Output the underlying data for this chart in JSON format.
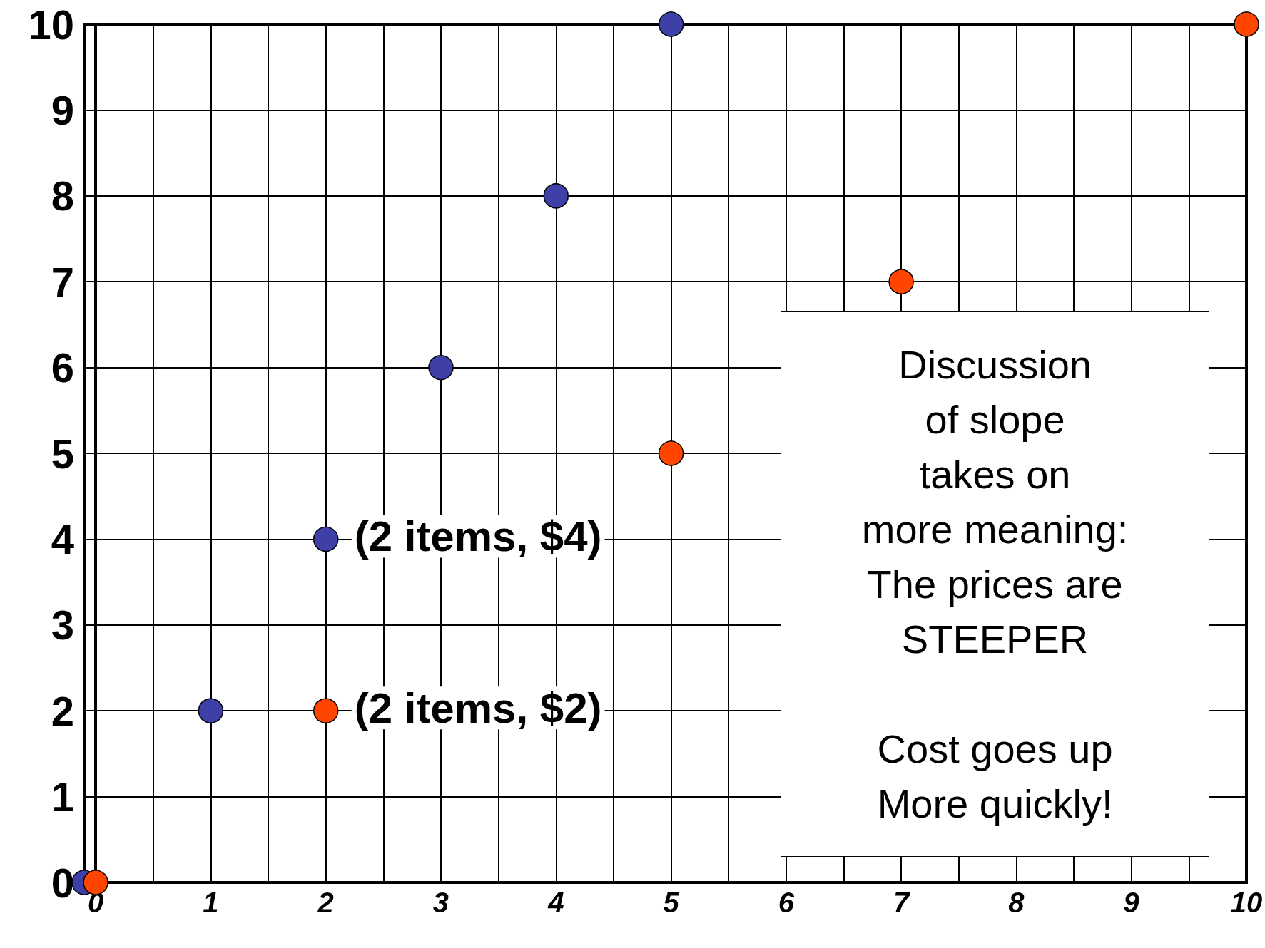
{
  "chart_data": {
    "type": "scatter",
    "series": [
      {
        "color": "#3f3fa8",
        "x": [
          -0.1,
          1,
          2,
          3,
          4,
          5
        ],
        "values": [
          0,
          2,
          4,
          6,
          8,
          10
        ]
      },
      {
        "color": "#ff4500",
        "x": [
          0,
          2,
          5,
          7,
          10
        ],
        "values": [
          0,
          2,
          5,
          7,
          10
        ]
      }
    ],
    "xlim": [
      -0.1,
      10
    ],
    "ylim": [
      0,
      10
    ],
    "xticks": [
      0,
      {
        "value": 0.5,
        "label": null
      },
      1,
      {
        "value": 1.5,
        "label": null
      },
      2,
      {
        "value": 2.5,
        "label": null
      },
      3,
      {
        "value": 3.5,
        "label": null
      },
      4,
      {
        "value": 4.5,
        "label": null
      },
      5,
      {
        "value": 5.5,
        "label": null
      },
      6,
      {
        "value": 6.5,
        "label": null
      },
      7,
      {
        "value": 7.5,
        "label": null
      },
      8,
      {
        "value": 8.5,
        "label": null
      },
      9,
      {
        "value": 9.5,
        "label": null
      },
      10
    ],
    "yticks": [
      0,
      1,
      2,
      3,
      4,
      5,
      6,
      7,
      8,
      9,
      10
    ],
    "grid": true,
    "marker": "circle",
    "annotations": [
      {
        "text": "(2 items, $4)",
        "x": 2,
        "y": 4
      },
      {
        "text": "(2 items, $2)",
        "x": 2,
        "y": 2
      },
      "Discussion\nof slope\ntakes on\nmore meaning:\nThe prices are\nSTEEPER\n\nCost goes up\nMore quickly!"
    ]
  }
}
